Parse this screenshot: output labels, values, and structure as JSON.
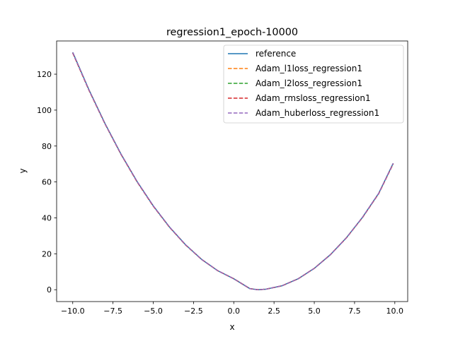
{
  "chart_data": {
    "type": "line",
    "title": "regression1_epoch-10000",
    "xlabel": "x",
    "ylabel": "y",
    "xlim": [
      -11.0,
      10.8
    ],
    "ylim": [
      -6.6,
      138.5
    ],
    "xticks": [
      -10.0,
      -7.5,
      -5.0,
      -2.5,
      0.0,
      2.5,
      5.0,
      7.5,
      10.0
    ],
    "xtick_labels": [
      "−10.0",
      "−7.5",
      "−5.0",
      "−2.5",
      "0.0",
      "2.5",
      "5.0",
      "7.5",
      "10.0"
    ],
    "yticks": [
      0,
      20,
      40,
      60,
      80,
      100,
      120
    ],
    "ytick_labels": [
      "0",
      "20",
      "40",
      "60",
      "80",
      "100",
      "120"
    ],
    "grid": false,
    "legend_position": "top-right",
    "x": [
      -10,
      -9,
      -8,
      -7,
      -6,
      -5,
      -4,
      -3,
      -2,
      -1,
      0,
      1,
      1.5,
      2,
      3,
      4,
      5,
      6,
      7,
      8,
      9,
      9.9
    ],
    "series": [
      {
        "name": "reference",
        "color": "#1f77b4",
        "style": "solid",
        "values": [
          132.2,
          111.5,
          92.6,
          75.5,
          60.2,
          46.7,
          35.0,
          25.1,
          16.9,
          10.6,
          6.1,
          0.6,
          0.0,
          0.3,
          2.2,
          6.1,
          11.9,
          19.5,
          29.0,
          40.4,
          53.7,
          70.4
        ]
      },
      {
        "name": "Adam_l1loss_regression1",
        "color": "#ff7f0e",
        "style": "dashed",
        "values": [
          131.9,
          111.3,
          92.4,
          75.4,
          60.1,
          46.6,
          34.9,
          25.0,
          16.9,
          10.6,
          6.1,
          0.6,
          0.0,
          0.3,
          2.2,
          6.1,
          11.9,
          19.5,
          29.0,
          40.3,
          53.6,
          70.2
        ]
      },
      {
        "name": "Adam_l2loss_regression1",
        "color": "#2ca02c",
        "style": "dashed",
        "values": [
          132.0,
          111.4,
          92.5,
          75.4,
          60.1,
          46.6,
          34.9,
          25.0,
          16.9,
          10.6,
          6.1,
          0.6,
          0.0,
          0.3,
          2.2,
          6.1,
          11.9,
          19.5,
          29.0,
          40.3,
          53.6,
          70.3
        ]
      },
      {
        "name": "Adam_rmsloss_regression1",
        "color": "#d62728",
        "style": "dashed",
        "values": [
          131.8,
          111.2,
          92.4,
          75.3,
          60.0,
          46.5,
          34.9,
          25.0,
          16.9,
          10.6,
          6.1,
          0.6,
          0.0,
          0.3,
          2.2,
          6.1,
          11.9,
          19.5,
          28.9,
          40.3,
          53.5,
          70.1
        ]
      },
      {
        "name": "Adam_huberloss_regression1",
        "color": "#9467bd",
        "style": "dashed",
        "values": [
          132.1,
          111.4,
          92.5,
          75.5,
          60.2,
          46.7,
          35.0,
          25.1,
          16.9,
          10.6,
          6.1,
          0.6,
          0.0,
          0.3,
          2.2,
          6.1,
          11.9,
          19.5,
          29.0,
          40.4,
          53.7,
          70.4
        ]
      }
    ]
  }
}
